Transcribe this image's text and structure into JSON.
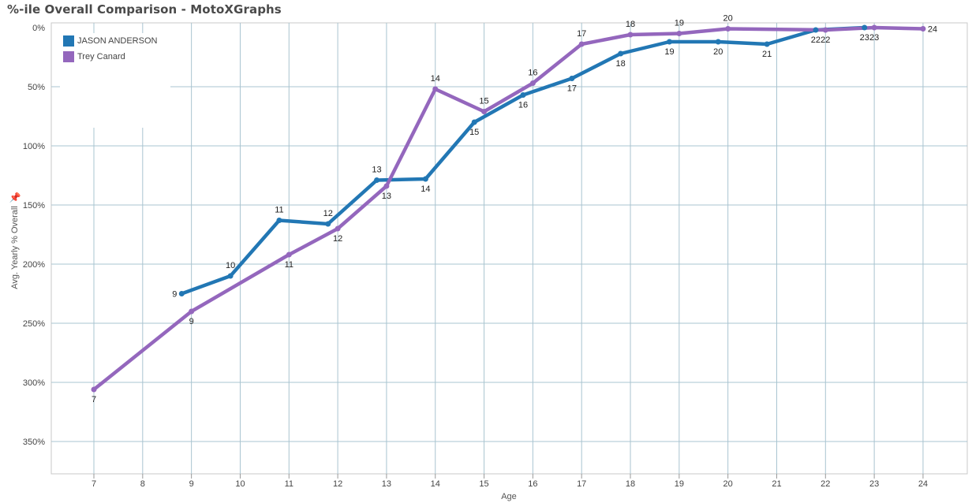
{
  "page": {
    "title": "%-ile Overall Comparison - MotoXGraphs"
  },
  "chart_data": {
    "type": "line",
    "title": "%-ile Overall Comparison - MotoXGraphs",
    "xlabel": "Age",
    "ylabel": "Avg. Yearly % Overall",
    "y_inverted": true,
    "ylim": [
      0,
      380
    ],
    "xlim": [
      7,
      24
    ],
    "grid": true,
    "legend_position": "top-left",
    "x_ticks": [
      "7",
      "8",
      "9",
      "10",
      "11",
      "12",
      "13",
      "14",
      "15",
      "16",
      "17",
      "18",
      "19",
      "20",
      "21",
      "22",
      "23",
      "24"
    ],
    "y_ticks": [
      {
        "value": 0,
        "label": "0%"
      },
      {
        "value": 50,
        "label": "50%"
      },
      {
        "value": 100,
        "label": "100%"
      },
      {
        "value": 150,
        "label": "150%"
      },
      {
        "value": 200,
        "label": "200%"
      },
      {
        "value": 250,
        "label": "250%"
      },
      {
        "value": 300,
        "label": "300%"
      },
      {
        "value": 350,
        "label": "350%"
      }
    ],
    "series": [
      {
        "name": "JASON ANDERSON",
        "color": "#2277b4",
        "x": [
          8.8,
          9.8,
          10.8,
          11.8,
          12.8,
          13.8,
          14.8,
          15.8,
          16.8,
          17.8,
          18.8,
          19.8,
          20.8,
          21.8,
          22.8
        ],
        "y": [
          225,
          210,
          163,
          166,
          129,
          128,
          80,
          57,
          43,
          22,
          12,
          12,
          14,
          2,
          0
        ],
        "labels": [
          "9",
          "10",
          "11",
          "12",
          "13",
          "14",
          "15",
          "16",
          "17",
          "18",
          "19",
          "20",
          "21",
          "22",
          "23"
        ]
      },
      {
        "name": "Trey Canard",
        "color": "#9467bd",
        "x": [
          7,
          9,
          11,
          12,
          13,
          14,
          15,
          16,
          17,
          18,
          19,
          20,
          22,
          23,
          24
        ],
        "y": [
          306,
          240,
          192,
          170,
          134,
          52,
          71,
          47,
          14,
          6,
          5,
          1,
          2,
          0,
          1
        ],
        "labels": [
          "7",
          "9",
          "11",
          "12",
          "13",
          "14",
          "15",
          "16",
          "17",
          "18",
          "19",
          "20",
          "22",
          "23",
          "24"
        ]
      }
    ]
  }
}
